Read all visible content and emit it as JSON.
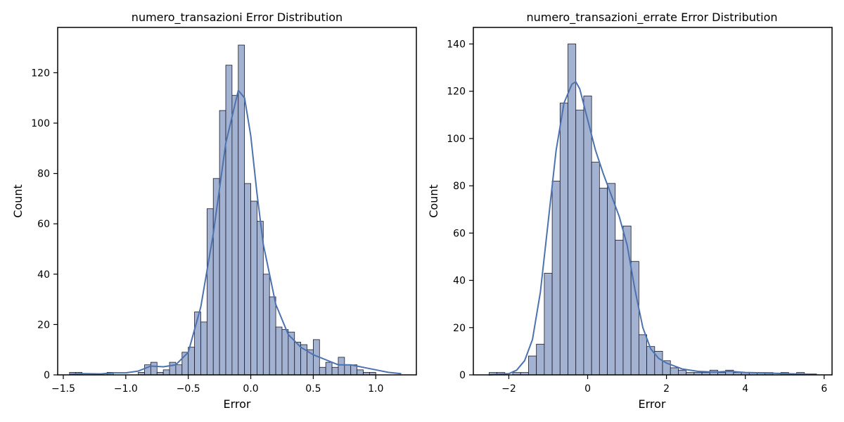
{
  "chart_data": [
    {
      "type": "bar",
      "title": "numero_transazioni Error Distribution",
      "xlabel": "Error",
      "ylabel": "Count",
      "xlim": [
        -1.545,
        1.325
      ],
      "ylim": [
        0,
        138
      ],
      "xticks": [
        -1.5,
        -1.0,
        -0.5,
        0.0,
        0.5,
        1.0
      ],
      "xtick_labels": [
        "−1.5",
        "−1.0",
        "−0.5",
        "0.0",
        "0.5",
        "1.0"
      ],
      "yticks": [
        0,
        20,
        40,
        60,
        80,
        100,
        120
      ],
      "ytick_labels": [
        "0",
        "20",
        "40",
        "60",
        "80",
        "100",
        "120"
      ],
      "bins": {
        "start": -1.45,
        "width": 0.05,
        "counts": [
          1,
          1,
          0,
          0,
          0,
          0,
          1,
          0,
          0,
          0,
          0,
          1,
          4,
          5,
          1,
          2,
          5,
          4,
          9,
          11,
          25,
          21,
          66,
          78,
          105,
          123,
          111,
          131,
          76,
          69,
          61,
          40,
          31,
          19,
          18,
          17,
          13,
          12,
          10,
          14,
          3,
          5,
          3,
          7,
          4,
          4,
          2,
          1,
          1
        ]
      },
      "kde": {
        "x": [
          -1.45,
          -1.35,
          -1.2,
          -1.1,
          -1.0,
          -0.9,
          -0.8,
          -0.7,
          -0.6,
          -0.5,
          -0.4,
          -0.3,
          -0.2,
          -0.1,
          -0.05,
          0.0,
          0.05,
          0.1,
          0.2,
          0.3,
          0.4,
          0.5,
          0.6,
          0.7,
          0.8,
          0.9,
          1.0,
          1.1,
          1.2
        ],
        "y": [
          0.2,
          0.5,
          0.4,
          0.8,
          0.8,
          1.5,
          3.5,
          3.2,
          4,
          9,
          27,
          56,
          92,
          113,
          110,
          95,
          72,
          52,
          28,
          16,
          11,
          8,
          6,
          4,
          4,
          3,
          2,
          1,
          0.5
        ]
      },
      "bar_fill": "#a2b2d0",
      "bar_edge": "#1a1a2e",
      "kde_color": "#4c72b0"
    },
    {
      "type": "bar",
      "title": "numero_transazioni_errate Error Distribution",
      "xlabel": "Error",
      "ylabel": "Count",
      "xlim": [
        -2.9,
        6.2
      ],
      "ylim": [
        0,
        147
      ],
      "xticks": [
        -2,
        0,
        2,
        4,
        6
      ],
      "xtick_labels": [
        "−2",
        "0",
        "2",
        "4",
        "6"
      ],
      "yticks": [
        0,
        20,
        40,
        60,
        80,
        100,
        120,
        140
      ],
      "ytick_labels": [
        "0",
        "20",
        "40",
        "60",
        "80",
        "100",
        "120",
        "140"
      ],
      "bins": {
        "start": -2.5,
        "width": 0.2,
        "counts": [
          1,
          1,
          0,
          1,
          1,
          8,
          13,
          43,
          82,
          115,
          140,
          112,
          118,
          90,
          79,
          81,
          57,
          63,
          48,
          17,
          12,
          10,
          6,
          3,
          2,
          1,
          1,
          1,
          2,
          1,
          2,
          1,
          1,
          1,
          1,
          1,
          0,
          1,
          0,
          1
        ]
      },
      "kde": {
        "x": [
          -2.5,
          -2.0,
          -1.8,
          -1.6,
          -1.4,
          -1.2,
          -1.0,
          -0.8,
          -0.6,
          -0.4,
          -0.3,
          -0.2,
          0.0,
          0.2,
          0.4,
          0.6,
          0.8,
          1.0,
          1.2,
          1.4,
          1.6,
          1.8,
          2.0,
          2.4,
          2.8,
          3.2,
          3.6,
          4.0,
          4.5,
          5.0,
          5.5,
          5.8
        ],
        "y": [
          0,
          0.5,
          2,
          6,
          15,
          35,
          65,
          95,
          115,
          123,
          124,
          121,
          108,
          95,
          85,
          76,
          67,
          55,
          36,
          20,
          11,
          7,
          5,
          2.5,
          1.5,
          1.2,
          1.5,
          1,
          0.8,
          0.5,
          0.3,
          0.3
        ]
      },
      "bar_fill": "#a2b2d0",
      "bar_edge": "#1a1a2e",
      "kde_color": "#4c72b0"
    }
  ]
}
